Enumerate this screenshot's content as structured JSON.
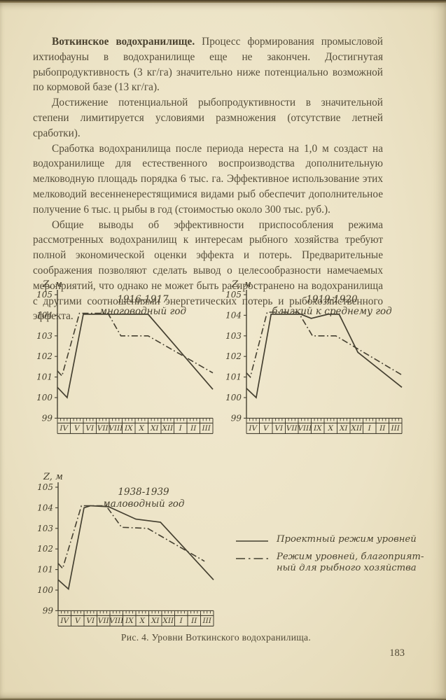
{
  "colors": {
    "paper": "#ece3c6",
    "ink": "#454031",
    "text": "#554d3a"
  },
  "page": {
    "caption": "Рис. 4. Уровни Воткинского водохранилища.",
    "page_number": "183"
  },
  "paragraphs": [
    {
      "lead": "Воткинское водохранилище.",
      "body": "Процесс формирования промысловой ихтиофауны в водохранилище еще не закончен. Достигнутая рыбопродуктивность (3 кг/га) значительно ниже потенциально возможной по кормовой базе (13 кг/га)."
    },
    {
      "lead": "",
      "body": "Достижение потенциальной рыбопродуктивности в значительной степени лимитируется условиями размножения (отсутствие летней сработки)."
    },
    {
      "lead": "",
      "body": "Сработка водохранилища после периода нереста на 1,0 м создаст на водохранилище для естественного воспроизводства дополнительную мелководную площадь порядка 6 тыс. га. Эффективное использование этих мелководий весенненерестящимися видами рыб обеспечит дополнительное получение 6 тыс. ц рыбы в год (стоимостью около 300 тыс. руб.)."
    },
    {
      "lead": "",
      "body": "Общие выводы об эффективности приспособления режима рассмотренных водохранилищ к интересам рыбного хозяйства требуют полной экономической оценки эффекта и потерь. Предварительные соображения позволяют сделать вывод о целесообразности намечаемых мероприятий, что однако не может быть распространено на водохранилища с другими соотношениями энергетических потерь и рыбохозяйственного эффекта."
    }
  ],
  "chart_data": [
    {
      "type": "line",
      "title_line1": "1916-1917",
      "title_line2": "многоводный год",
      "ylabel": "Z, м",
      "ylim": [
        99,
        105
      ],
      "yticks": [
        99,
        100,
        101,
        102,
        103,
        104,
        105
      ],
      "x_categories": [
        "IV",
        "V",
        "VI",
        "VII",
        "VIII",
        "IX",
        "X",
        "XI",
        "XII",
        "I",
        "II",
        "III"
      ],
      "x_unit": "months from April (0) to March (12)",
      "grid": false,
      "series": [
        {
          "name": "Проектный режим уровней",
          "style": "solid",
          "points": [
            [
              0,
              100.5
            ],
            [
              0.75,
              100.0
            ],
            [
              2.0,
              104.05
            ],
            [
              7.0,
              104.05
            ],
            [
              12,
              100.4
            ]
          ]
        },
        {
          "name": "Режим уровней, благоприятный для рыбного хозяйства",
          "style": "dashdot",
          "points": [
            [
              0,
              101.3
            ],
            [
              0.35,
              101.05
            ],
            [
              1.7,
              104.1
            ],
            [
              3.9,
              104.1
            ],
            [
              4.9,
              103.0
            ],
            [
              7.0,
              103.0
            ],
            [
              12,
              101.2
            ]
          ]
        }
      ]
    },
    {
      "type": "line",
      "title_line1": "1919-1920",
      "title_line2": "близкий к среднему год",
      "ylabel": "Z, м",
      "ylim": [
        99,
        105
      ],
      "yticks": [
        99,
        100,
        101,
        102,
        103,
        104,
        105
      ],
      "x_categories": [
        "IV",
        "V",
        "VI",
        "VII",
        "VIII",
        "IX",
        "X",
        "XI",
        "XII",
        "I",
        "II",
        "III"
      ],
      "x_unit": "months from April (0) to March (12)",
      "grid": false,
      "series": [
        {
          "name": "Проектный режим уровней",
          "style": "solid",
          "points": [
            [
              0,
              100.45
            ],
            [
              0.75,
              100.0
            ],
            [
              1.9,
              104.05
            ],
            [
              4.2,
              104.05
            ],
            [
              5.0,
              103.85
            ],
            [
              6.3,
              104.05
            ],
            [
              7.15,
              104.05
            ],
            [
              8.6,
              102.2
            ],
            [
              12,
              100.5
            ]
          ]
        },
        {
          "name": "Режим уровней, благоприятный для рыбного хозяйства",
          "style": "dashdot",
          "points": [
            [
              0,
              101.2
            ],
            [
              0.3,
              101.0
            ],
            [
              1.6,
              104.15
            ],
            [
              4.0,
              104.15
            ],
            [
              5.1,
              103.0
            ],
            [
              6.9,
              103.0
            ],
            [
              12,
              101.1
            ]
          ]
        }
      ]
    },
    {
      "type": "line",
      "title_line1": "1938-1939",
      "title_line2": "маловодный год",
      "ylabel": "Z, м",
      "ylim": [
        99,
        105
      ],
      "yticks": [
        99,
        100,
        101,
        102,
        103,
        104,
        105
      ],
      "x_categories": [
        "IV",
        "V",
        "VI",
        "VII",
        "VIII",
        "IX",
        "X",
        "XI",
        "XII",
        "I",
        "II",
        "III"
      ],
      "x_unit": "months from April (0) to March (12)",
      "grid": false,
      "series": [
        {
          "name": "Проектный режим уровней",
          "style": "solid",
          "points": [
            [
              0,
              100.5
            ],
            [
              0.8,
              100.05
            ],
            [
              2.0,
              104.0
            ],
            [
              2.5,
              104.1
            ],
            [
              3.9,
              104.05
            ],
            [
              6.0,
              103.45
            ],
            [
              7.9,
              103.3
            ],
            [
              12,
              100.5
            ]
          ]
        },
        {
          "name": "Режим уровней, благоприятный для рыбного хозяйства",
          "style": "dashdot",
          "points": [
            [
              0,
              101.3
            ],
            [
              0.35,
              101.05
            ],
            [
              1.8,
              104.1
            ],
            [
              3.7,
              104.1
            ],
            [
              4.9,
              103.05
            ],
            [
              6.9,
              103.0
            ],
            [
              11.3,
              101.4
            ]
          ]
        }
      ]
    }
  ],
  "legend": {
    "items": [
      {
        "style": "solid",
        "label_lines": [
          "Проектный режим уровней",
          ""
        ]
      },
      {
        "style": "dashdot",
        "label_lines": [
          "Режим уровней, благоприят-",
          "ный для рыбного хозяйства"
        ]
      }
    ]
  }
}
